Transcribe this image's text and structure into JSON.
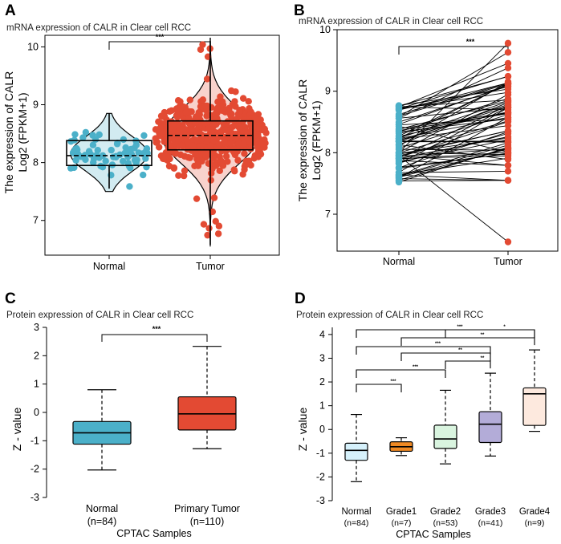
{
  "chart_data": [
    {
      "panel": "A",
      "type": "box-violin-scatter",
      "title": "mRNA expression of CALR in Clear cell RCC",
      "ylabel_line1": "The expression of CALR",
      "ylabel_line2": "Log2 (FPKM+1)",
      "ylim": [
        6.4,
        10.2
      ],
      "yticks": [
        7,
        8,
        9,
        10
      ],
      "categories": [
        "Normal",
        "Tumor"
      ],
      "series": [
        {
          "name": "Normal",
          "color": "#4bb0c9",
          "box": {
            "min": 7.55,
            "q1": 7.95,
            "median": 8.12,
            "q3": 8.38,
            "max": 8.85
          }
        },
        {
          "name": "Tumor",
          "color": "#e34a33",
          "box": {
            "min": 6.58,
            "q1": 8.22,
            "median": 8.47,
            "q3": 8.72,
            "max": 10.1
          }
        }
      ],
      "significance": "***"
    },
    {
      "panel": "B",
      "type": "paired-line",
      "title": "mRNA expression of CALR in Clear cell RCC",
      "ylabel_line1": "The expression of CALR",
      "ylabel_line2": "Log2 (FPKM+1)",
      "ylim": [
        6.4,
        10.0
      ],
      "yticks": [
        7,
        8,
        9,
        10
      ],
      "categories": [
        "Normal",
        "Tumor"
      ],
      "normal_range": [
        7.5,
        8.8
      ],
      "tumor_range": [
        6.55,
        9.8
      ],
      "colors": {
        "normal": "#4bb0c9",
        "tumor": "#e34a33"
      },
      "significance": "***"
    },
    {
      "panel": "C",
      "type": "box",
      "title": "Protein expression of CALR in Clear cell RCC",
      "ylabel": "Z - value",
      "xlabel": "CPTAC Samples",
      "ylim": [
        -3,
        3
      ],
      "yticks": [
        -3,
        -2,
        -1,
        0,
        1,
        2,
        3
      ],
      "categories": [
        "Normal",
        "Primary Tumor"
      ],
      "counts": [
        "(n=84)",
        "(n=110)"
      ],
      "series": [
        {
          "name": "Normal",
          "color": "#4bb0c9",
          "box": {
            "min": -2.03,
            "q1": -1.12,
            "median": -0.72,
            "q3": -0.32,
            "max": 0.8
          }
        },
        {
          "name": "Primary Tumor",
          "color": "#e34a33",
          "box": {
            "min": -1.28,
            "q1": -0.62,
            "median": -0.05,
            "q3": 0.55,
            "max": 2.33
          }
        }
      ],
      "significance": "***"
    },
    {
      "panel": "D",
      "type": "box",
      "title": "Protein expression of CALR in Clear cell RCC",
      "ylabel": "Z - value",
      "xlabel": "CPTAC Samples",
      "ylim": [
        -3,
        4.3
      ],
      "yticks": [
        -3,
        -2,
        -1,
        0,
        1,
        2,
        3,
        4
      ],
      "categories": [
        "Normal",
        "Grade1",
        "Grade2",
        "Grade3",
        "Grade4"
      ],
      "counts": [
        "(n=84)",
        "(n=7)",
        "(n=53)",
        "(n=41)",
        "(n=9)"
      ],
      "series": [
        {
          "name": "Normal",
          "color": "#d6f1fb",
          "box": {
            "min": -2.2,
            "q1": -1.3,
            "median": -0.88,
            "q3": -0.58,
            "max": 0.63
          }
        },
        {
          "name": "Grade1",
          "color": "#f08a24",
          "box": {
            "min": -1.1,
            "q1": -0.92,
            "median": -0.73,
            "q3": -0.52,
            "max": -0.35
          }
        },
        {
          "name": "Grade2",
          "color": "#d9f4df",
          "box": {
            "min": -1.45,
            "q1": -0.8,
            "median": -0.4,
            "q3": 0.18,
            "max": 1.65
          }
        },
        {
          "name": "Grade3",
          "color": "#b3acd8",
          "box": {
            "min": -1.12,
            "q1": -0.55,
            "median": 0.22,
            "q3": 0.75,
            "max": 2.37
          }
        },
        {
          "name": "Grade4",
          "color": "#fde9de",
          "box": {
            "min": -0.08,
            "q1": 0.17,
            "median": 1.5,
            "q3": 1.75,
            "max": 3.35
          }
        }
      ],
      "comparisons": [
        {
          "a": 0,
          "b": 4,
          "label": "***"
        },
        {
          "a": 1,
          "b": 4,
          "label": "**"
        },
        {
          "a": 2,
          "b": 4,
          "label": "*"
        },
        {
          "a": 0,
          "b": 3,
          "label": "***"
        },
        {
          "a": 1,
          "b": 3,
          "label": "**"
        },
        {
          "a": 2,
          "b": 3,
          "label": "**"
        },
        {
          "a": 0,
          "b": 2,
          "label": "***"
        },
        {
          "a": 0,
          "b": 1,
          "label": "***"
        }
      ]
    }
  ]
}
